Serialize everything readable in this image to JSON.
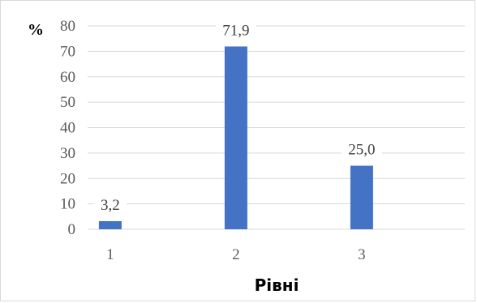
{
  "chart_data": {
    "type": "bar",
    "categories": [
      "1",
      "2",
      "3"
    ],
    "values": [
      3.2,
      71.9,
      25.0
    ],
    "data_labels": [
      "3,2",
      "71,9",
      "25,0"
    ],
    "title": "",
    "xlabel": "Рівні",
    "ylabel": "%",
    "ylim": [
      0,
      80
    ],
    "yticks": [
      0,
      10,
      20,
      30,
      40,
      50,
      60,
      70,
      80
    ],
    "grid": true,
    "legend": "none",
    "bar_color": "#4472c4",
    "grid_color": "#d9d9d9"
  }
}
